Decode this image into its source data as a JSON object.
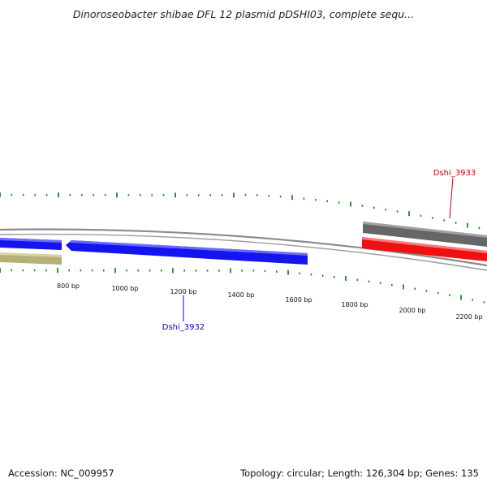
{
  "title": "Dinoroseobacter shibae DFL 12 plasmid pDSHI03, complete sequ...",
  "footer": {
    "accession": "Accession: NC_009957",
    "summary": "Topology: circular; Length: 126,304 bp; Genes: 135"
  },
  "ruler": {
    "labels": [
      "800 bp",
      "1000 bp",
      "1200 bp",
      "1400 bp",
      "1600 bp",
      "1800 bp",
      "2000 bp",
      "2200 bp"
    ]
  },
  "genes": [
    {
      "label": "Dshi_3932",
      "color": "#0000cc"
    },
    {
      "label": "Dshi_3933",
      "color": "#cc0000"
    }
  ],
  "colors": {
    "tick": "#1a8a1a",
    "forward_blue": "#1212ee",
    "reverse_olive": "#b5b07a",
    "red_gene": "#ee1111",
    "grey_gene": "#707070",
    "backbone": "#8c8c8c"
  }
}
